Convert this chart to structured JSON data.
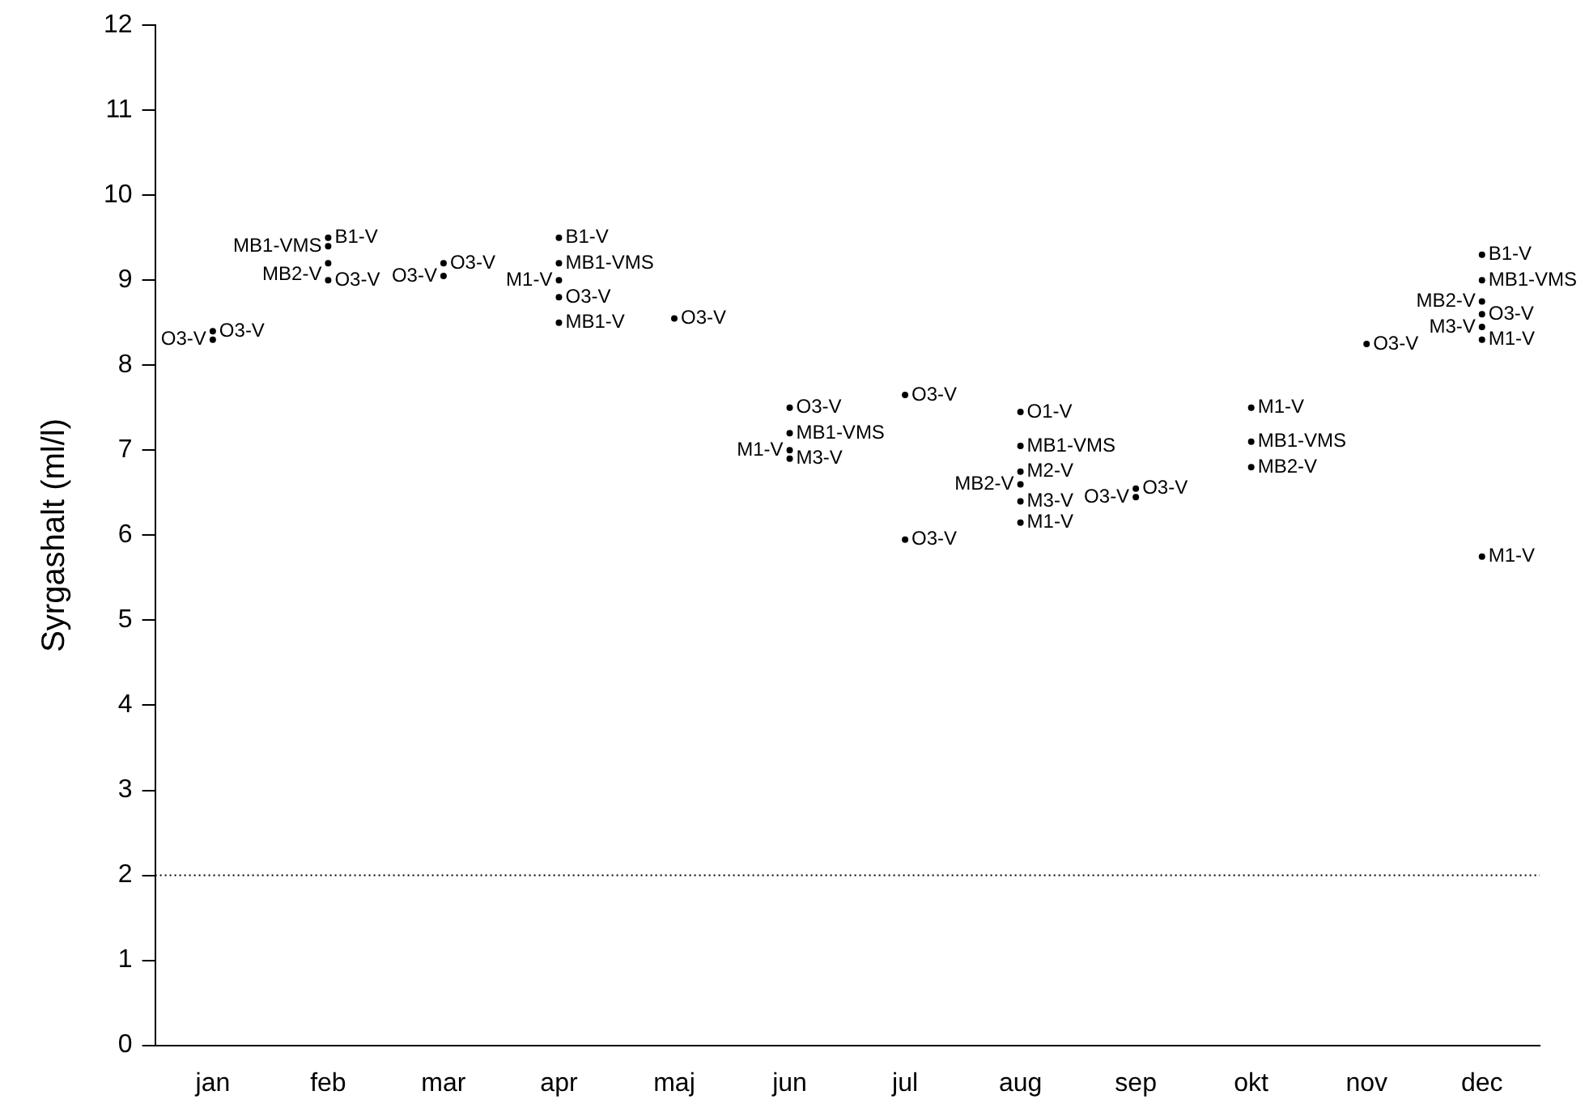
{
  "chart_data": {
    "type": "scatter",
    "ylabel": "Syrgashalt (ml/l)",
    "categories": [
      "jan",
      "feb",
      "mar",
      "apr",
      "maj",
      "jun",
      "jul",
      "aug",
      "sep",
      "okt",
      "nov",
      "dec"
    ],
    "ylim": [
      0,
      12
    ],
    "yticks": [
      0,
      1,
      2,
      3,
      4,
      5,
      6,
      7,
      8,
      9,
      10,
      11,
      12
    ],
    "grid": false,
    "legend": false,
    "marker": "circle",
    "ref_lines": [
      {
        "axis": "y",
        "value": 2,
        "line_style": "dotted",
        "color": "#000000"
      }
    ],
    "series": [
      {
        "name": "O3-V",
        "color": "#000000",
        "x": [
          "jan",
          "jan",
          "feb",
          "mar",
          "mar",
          "apr",
          "maj",
          "jun",
          "jul",
          "jul",
          "sep",
          "sep",
          "nov",
          "dec"
        ],
        "values": [
          8.4,
          8.3,
          9.0,
          9.2,
          9.05,
          8.8,
          8.55,
          7.5,
          7.65,
          5.95,
          6.55,
          6.45,
          8.25,
          8.6
        ]
      },
      {
        "name": "B1-V",
        "color": "#000000",
        "x": [
          "feb",
          "apr",
          "dec"
        ],
        "values": [
          9.5,
          9.5,
          9.3
        ]
      },
      {
        "name": "MB1-VMS",
        "color": "#000000",
        "x": [
          "feb",
          "apr",
          "jun",
          "aug",
          "okt",
          "dec"
        ],
        "values": [
          9.4,
          9.2,
          7.2,
          7.05,
          7.1,
          9.0
        ]
      },
      {
        "name": "MB2-V",
        "color": "#000000",
        "x": [
          "feb",
          "aug",
          "okt",
          "dec"
        ],
        "values": [
          9.2,
          6.6,
          6.8,
          8.75
        ]
      },
      {
        "name": "M1-V",
        "color": "#000000",
        "x": [
          "apr",
          "jun",
          "aug",
          "okt",
          "dec",
          "dec"
        ],
        "values": [
          9.0,
          7.0,
          6.15,
          7.5,
          8.3,
          5.75
        ]
      },
      {
        "name": "M3-V",
        "color": "#000000",
        "x": [
          "jun",
          "aug",
          "dec"
        ],
        "values": [
          6.9,
          6.4,
          8.45
        ]
      },
      {
        "name": "MB1-V",
        "color": "#000000",
        "x": [
          "apr"
        ],
        "values": [
          8.5
        ]
      },
      {
        "name": "O1-V",
        "color": "#000000",
        "x": [
          "aug"
        ],
        "values": [
          7.45
        ]
      },
      {
        "name": "M2-V",
        "color": "#000000",
        "x": [
          "aug"
        ],
        "values": [
          6.75
        ]
      }
    ]
  }
}
